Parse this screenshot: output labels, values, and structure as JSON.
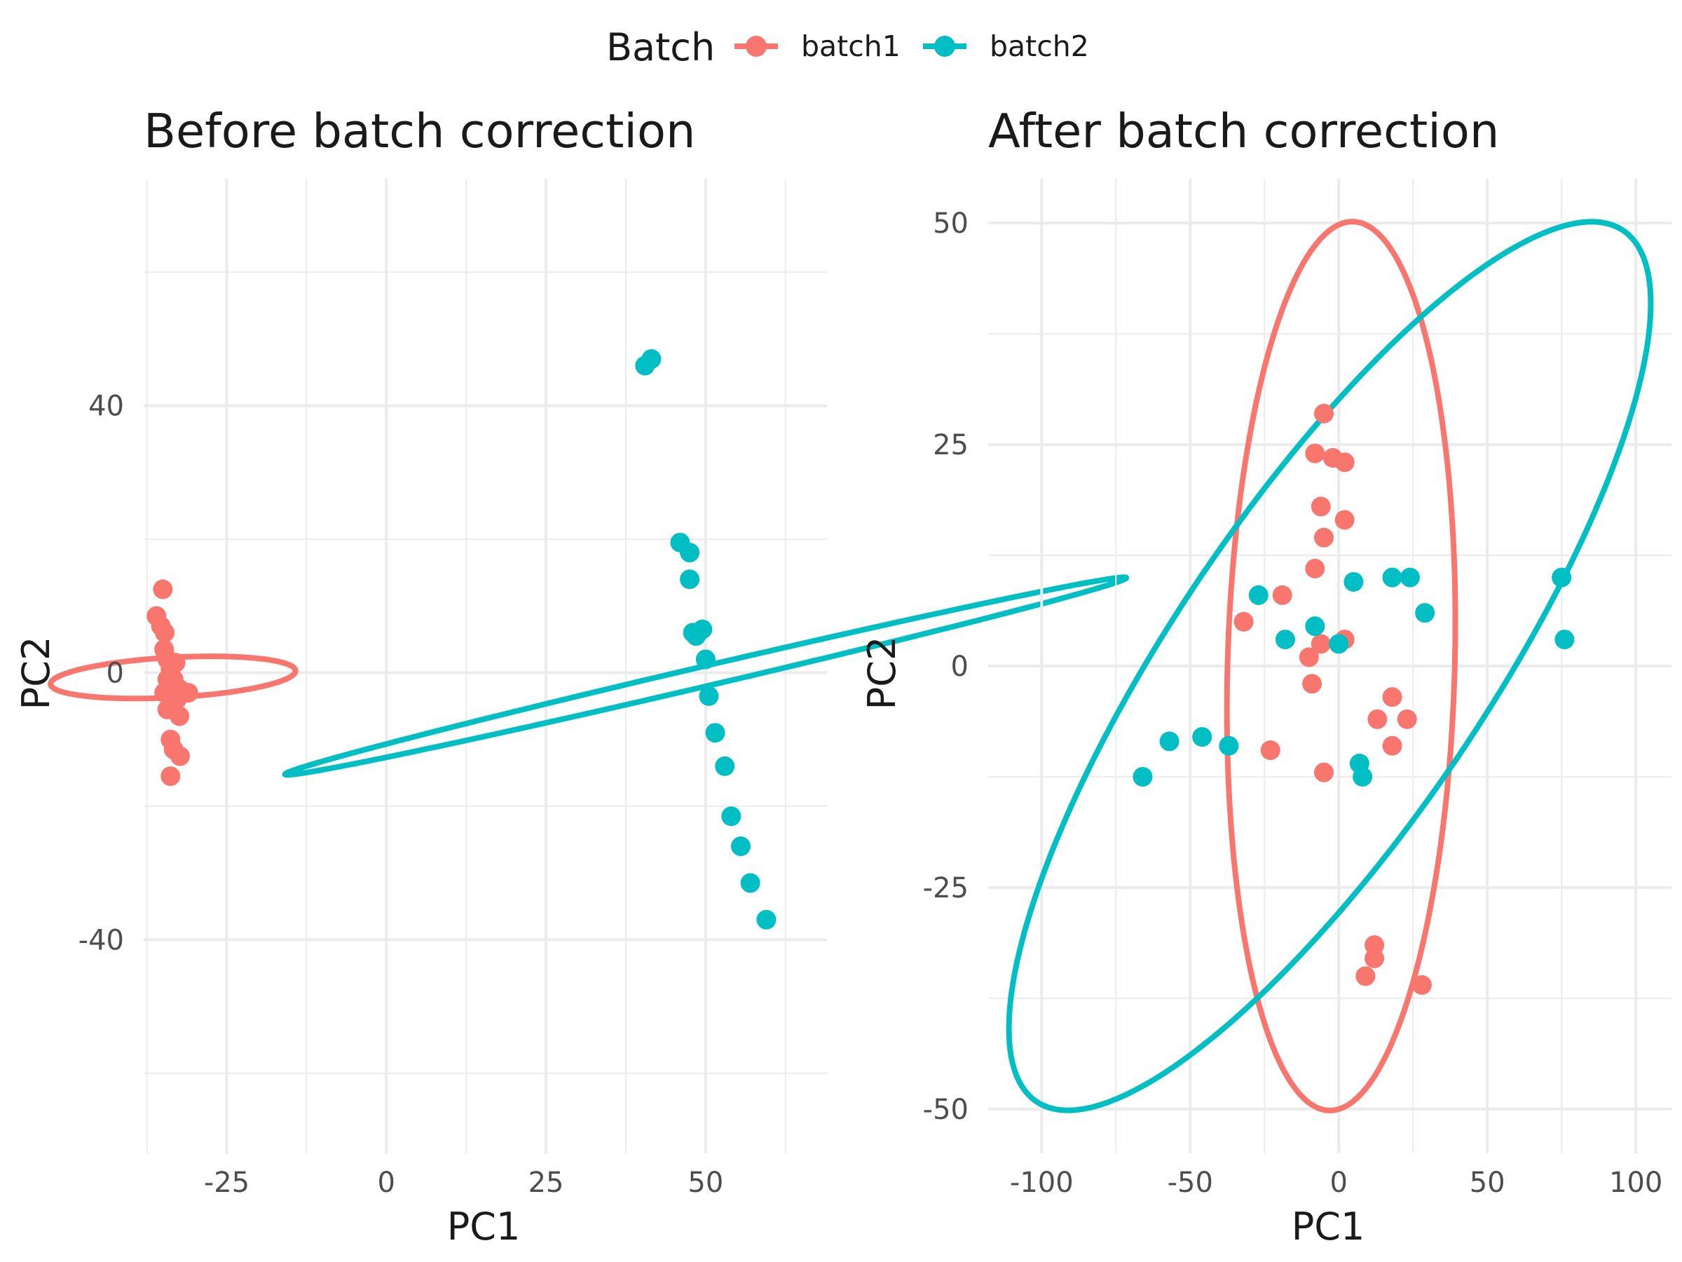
{
  "legend": {
    "title": "Batch",
    "entries": [
      {
        "label": "batch1",
        "color": "#F8766D"
      },
      {
        "label": "batch2",
        "color": "#00BFC4"
      }
    ]
  },
  "chart_data": [
    {
      "type": "scatter",
      "title": "Before batch correction",
      "xlabel": "PC1",
      "ylabel": "PC2",
      "xlim": [
        -38,
        69
      ],
      "ylim": [
        -72,
        74
      ],
      "xticks": [
        -25,
        0,
        25,
        50
      ],
      "yticks": [
        -40,
        0,
        40
      ],
      "x_tick_labels": [
        "-25",
        "0",
        "25",
        "50"
      ],
      "y_tick_labels": [
        "-40",
        "0",
        "40"
      ],
      "grid": true,
      "series": [
        {
          "name": "batch1",
          "color": "#F8766D",
          "points": [
            [
              -36,
              8.5
            ],
            [
              -35,
              12.5
            ],
            [
              -35.3,
              7
            ],
            [
              -34.7,
              6
            ],
            [
              -34.8,
              3.5
            ],
            [
              -34.3,
              2
            ],
            [
              -33.8,
              0.5
            ],
            [
              -33,
              1.5
            ],
            [
              -34.3,
              -1
            ],
            [
              -33.3,
              -1
            ],
            [
              -32.3,
              -2.5
            ],
            [
              -31,
              -3
            ],
            [
              -32.8,
              -4
            ],
            [
              -34.3,
              -5.5
            ],
            [
              -32.4,
              -6.5
            ],
            [
              -33.8,
              -10
            ],
            [
              -33.3,
              -11.5
            ],
            [
              -32.3,
              -12.5
            ],
            [
              -33.8,
              -15.5
            ],
            [
              -34.8,
              -3
            ]
          ],
          "ellipse": {
            "center": [
              -33.4,
              -0.7
            ],
            "semi_axes": [
              3.0,
              19.2
            ],
            "angle_deg": 93
          }
        },
        {
          "name": "batch2",
          "color": "#00BFC4",
          "points": [
            [
              41.5,
              47
            ],
            [
              40.5,
              46
            ],
            [
              46,
              19.5
            ],
            [
              47.5,
              18
            ],
            [
              47.5,
              14
            ],
            [
              48.5,
              5.5
            ],
            [
              49.5,
              6.5
            ],
            [
              48,
              6
            ],
            [
              50,
              2
            ],
            [
              50.5,
              -3.5
            ],
            [
              51.5,
              -9
            ],
            [
              53,
              -14
            ],
            [
              54,
              -21.5
            ],
            [
              55.5,
              -26
            ],
            [
              57,
              -31.5
            ],
            [
              59.5,
              -37
            ]
          ],
          "ellipse": {
            "center": [
              50,
              -0.5
            ],
            "semi_axes": [
              1.5,
              67.5
            ],
            "angle_deg": 102.6
          }
        }
      ]
    },
    {
      "type": "scatter",
      "title": "After batch correction",
      "xlabel": "PC1",
      "ylabel": "PC2",
      "xlim": [
        -118,
        112
      ],
      "ylim": [
        -55,
        55
      ],
      "xticks": [
        -100,
        -50,
        0,
        50,
        100
      ],
      "yticks": [
        -50,
        -25,
        0,
        25,
        50
      ],
      "x_tick_labels": [
        "-100",
        "-50",
        "0",
        "50",
        "100"
      ],
      "y_tick_labels": [
        "-50",
        "-25",
        "0",
        "25",
        "50"
      ],
      "grid": true,
      "series": [
        {
          "name": "batch1",
          "color": "#F8766D",
          "points": [
            [
              -5,
              28.5
            ],
            [
              -8,
              24
            ],
            [
              -2,
              23.5
            ],
            [
              2,
              23
            ],
            [
              -6,
              18
            ],
            [
              2,
              16.5
            ],
            [
              -5,
              14.5
            ],
            [
              -8,
              11
            ],
            [
              -19,
              8
            ],
            [
              -32,
              5
            ],
            [
              -6,
              2.5
            ],
            [
              -10,
              1
            ],
            [
              -9,
              -2
            ],
            [
              2,
              3
            ],
            [
              18,
              -3.5
            ],
            [
              13,
              -6
            ],
            [
              23,
              -6
            ],
            [
              18,
              -9
            ],
            [
              -23,
              -9.5
            ],
            [
              -5,
              -12
            ],
            [
              12,
              -31.5
            ],
            [
              12,
              -33
            ],
            [
              9,
              -35
            ],
            [
              28,
              -36
            ]
          ],
          "ellipse": {
            "center": [
              0.8,
              0
            ],
            "semi_axes": [
              38,
              50.5
            ],
            "angle_deg": -10
          }
        },
        {
          "name": "batch2",
          "color": "#00BFC4",
          "points": [
            [
              -27,
              8
            ],
            [
              -18,
              3
            ],
            [
              -8,
              4.5
            ],
            [
              0,
              2.5
            ],
            [
              5,
              9.5
            ],
            [
              18,
              10
            ],
            [
              24,
              10
            ],
            [
              29,
              6
            ],
            [
              75,
              10
            ],
            [
              76,
              3
            ],
            [
              -57,
              -8.5
            ],
            [
              -46,
              -8
            ],
            [
              -37,
              -9
            ],
            [
              -66,
              -12.5
            ],
            [
              7,
              -11
            ],
            [
              8,
              -12.5
            ]
          ],
          "ellipse": {
            "center": [
              -3,
              0
            ],
            "semi_axes": [
              116,
              27
            ],
            "angle_deg": 22
          }
        }
      ]
    }
  ]
}
